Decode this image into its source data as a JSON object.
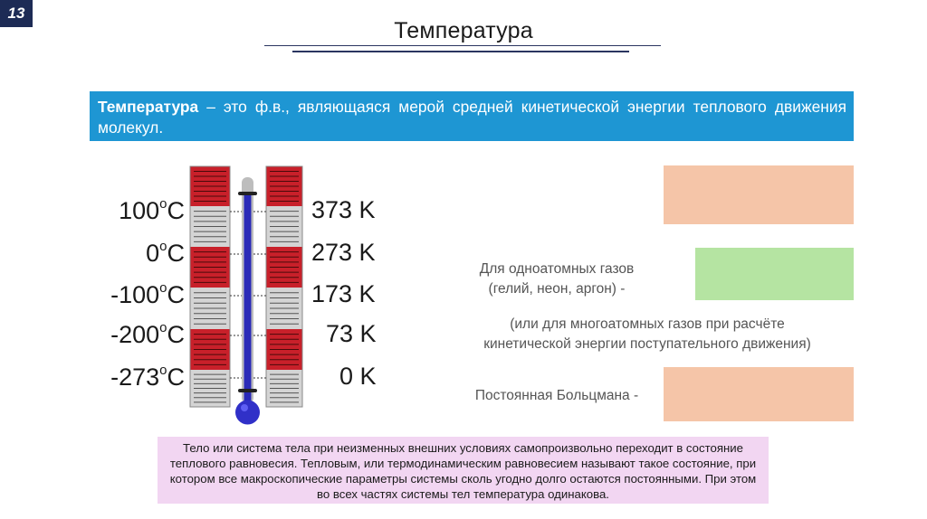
{
  "slide_number": "13",
  "title": "Температура",
  "definition": {
    "term": "Температура",
    "text": " – это ф.в., являющаяся мерой средней кинетической энергии теплового движения молекул."
  },
  "scale": [
    {
      "celsius": "100",
      "kelvin": "373 K"
    },
    {
      "celsius": "0",
      "kelvin": "273 K"
    },
    {
      "celsius": "-100",
      "kelvin": "173 K"
    },
    {
      "celsius": "-200",
      "kelvin": "73 K"
    },
    {
      "celsius": "-273",
      "kelvin": "0 K"
    }
  ],
  "degree_mark": "o",
  "celsius_unit": "C",
  "right_panel": {
    "monatomic_line1": "Для одноатомных газов",
    "monatomic_line2": "(гелий, неон, аргон) -",
    "polyatomic_line1": "(или для многоатомных газов при расчёте",
    "polyatomic_line2": "кинетической энергии поступательного движения)",
    "boltzmann": "Постоянная Больцмана -"
  },
  "colors": {
    "header_bg": "#1d2b55",
    "definition_bg": "#1e96d3",
    "red_band": "#c8202a",
    "gray_band": "#d4d4d4",
    "peach_box": "#f5c5a8",
    "green_box": "#b5e4a2",
    "note_bg": "#f2d6f2",
    "mercury": "#2a2ab8"
  },
  "bottom_note": "Тело или система тела при неизменных внешних условиях самопроизвольно переходит в состояние теплового равновесия. Тепловым, или термодинамическим равновесием называют такое состояние, при котором все макроскопические параметры системы сколь угодно долго остаются постоянными. При этом во всех частях системы тел температура одинакова."
}
